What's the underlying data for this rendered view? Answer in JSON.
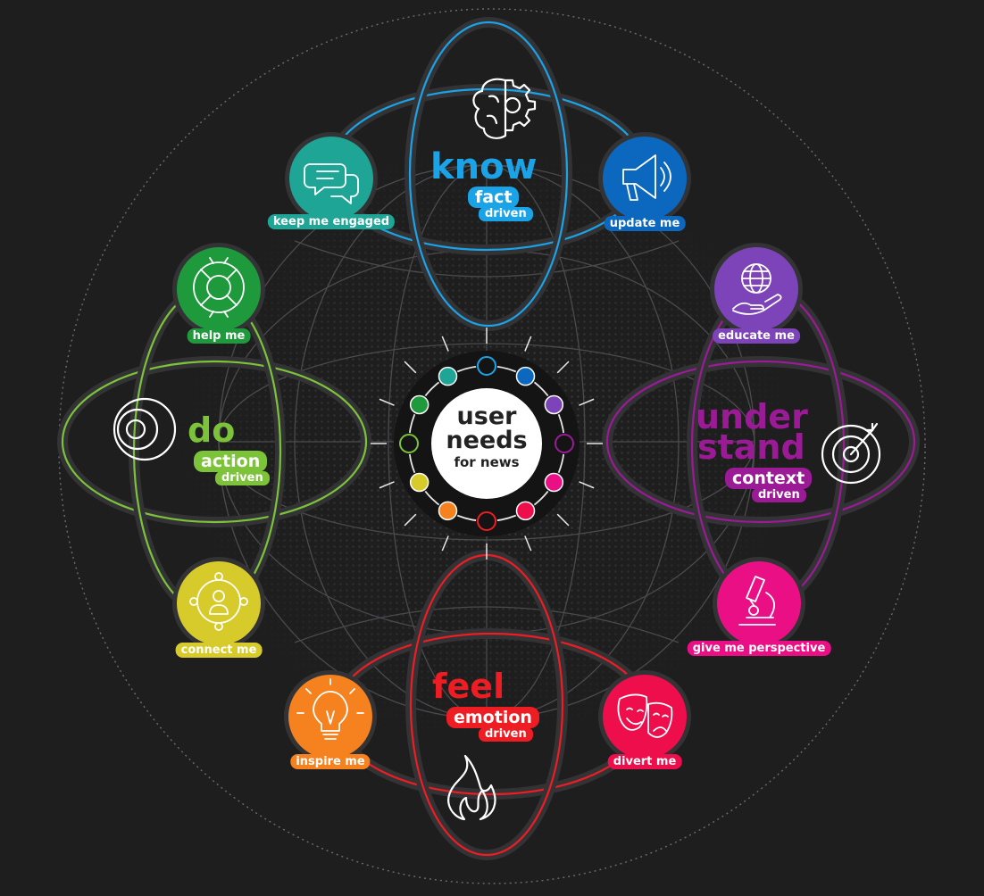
{
  "center": {
    "line1": "user",
    "line2": "needs",
    "line3": "for news"
  },
  "groups": {
    "know": {
      "word": "know",
      "tag": "fact",
      "sub": "driven",
      "color": "#1ba3e8"
    },
    "do": {
      "word": "do",
      "tag": "action",
      "sub": "driven",
      "color": "#7cc33a"
    },
    "understand": {
      "word1": "under",
      "word2": "stand",
      "tag": "context",
      "sub": "driven",
      "color": "#9b1b96"
    },
    "feel": {
      "word": "feel",
      "tag": "emotion",
      "sub": "driven",
      "color": "#ee1d24"
    }
  },
  "needs": [
    {
      "label": "keep me engaged",
      "color": "#1fa596",
      "icon": "chat-icon"
    },
    {
      "label": "update me",
      "color": "#0c68bf",
      "icon": "megaphone-icon"
    },
    {
      "label": "educate me",
      "color": "#7c44b8",
      "icon": "globe-hand-icon"
    },
    {
      "label": "give me perspective",
      "color": "#eb0f86",
      "icon": "microscope-icon"
    },
    {
      "label": "divert me",
      "color": "#ef0e4c",
      "icon": "theatre-masks-icon"
    },
    {
      "label": "inspire me",
      "color": "#f6821f",
      "icon": "lightbulb-icon"
    },
    {
      "label": "connect me",
      "color": "#d7cb2b",
      "icon": "network-person-icon"
    },
    {
      "label": "help me",
      "color": "#1e9a3c",
      "icon": "lifebuoy-icon"
    }
  ],
  "ring_dots": [
    {
      "color": "#1ba3e8",
      "filled": false
    },
    {
      "color": "#0c68bf",
      "filled": true
    },
    {
      "color": "#7c44b8",
      "filled": true
    },
    {
      "color": "#9b1b96",
      "filled": false
    },
    {
      "color": "#eb0f86",
      "filled": true
    },
    {
      "color": "#ef0e4c",
      "filled": true
    },
    {
      "color": "#ee1d24",
      "filled": false
    },
    {
      "color": "#f6821f",
      "filled": true
    },
    {
      "color": "#d7cb2b",
      "filled": true
    },
    {
      "color": "#7cc33a",
      "filled": false
    },
    {
      "color": "#1e9a3c",
      "filled": true
    },
    {
      "color": "#1fa596",
      "filled": true
    }
  ]
}
